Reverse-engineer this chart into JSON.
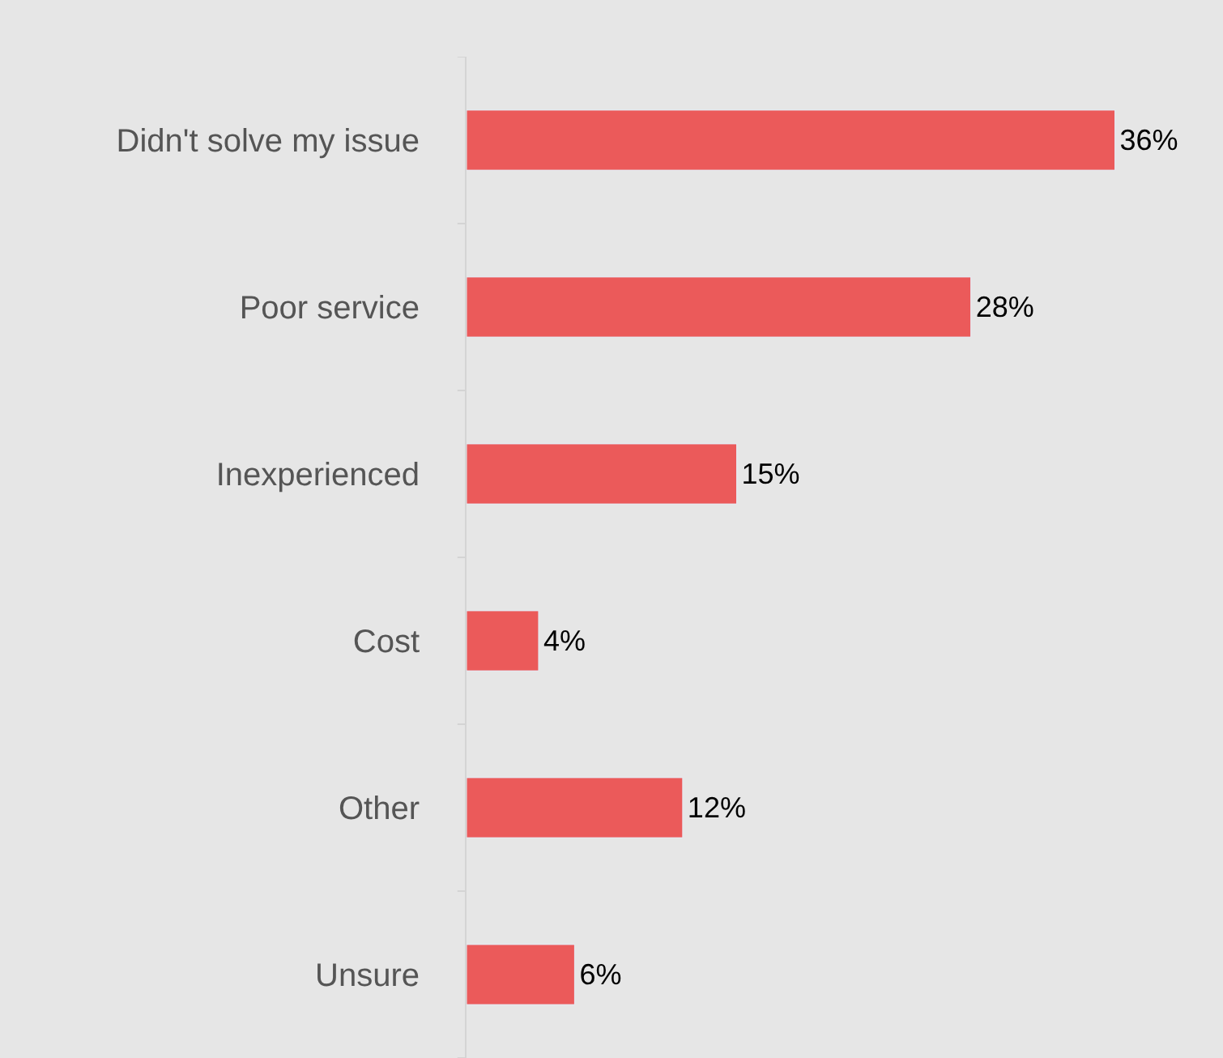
{
  "chart_data": {
    "type": "bar",
    "orientation": "horizontal",
    "categories": [
      "Didn't solve my issue",
      "Poor service",
      "Inexperienced",
      "Cost",
      "Other",
      "Unsure"
    ],
    "values": [
      36,
      28,
      15,
      4,
      12,
      6
    ],
    "value_labels": [
      "36%",
      "28%",
      "15%",
      "4%",
      "12%",
      "6%"
    ],
    "color": "#eb5a5a",
    "xlim": [
      0,
      42
    ],
    "tick_labels": "y",
    "grid": false,
    "legend": false
  }
}
